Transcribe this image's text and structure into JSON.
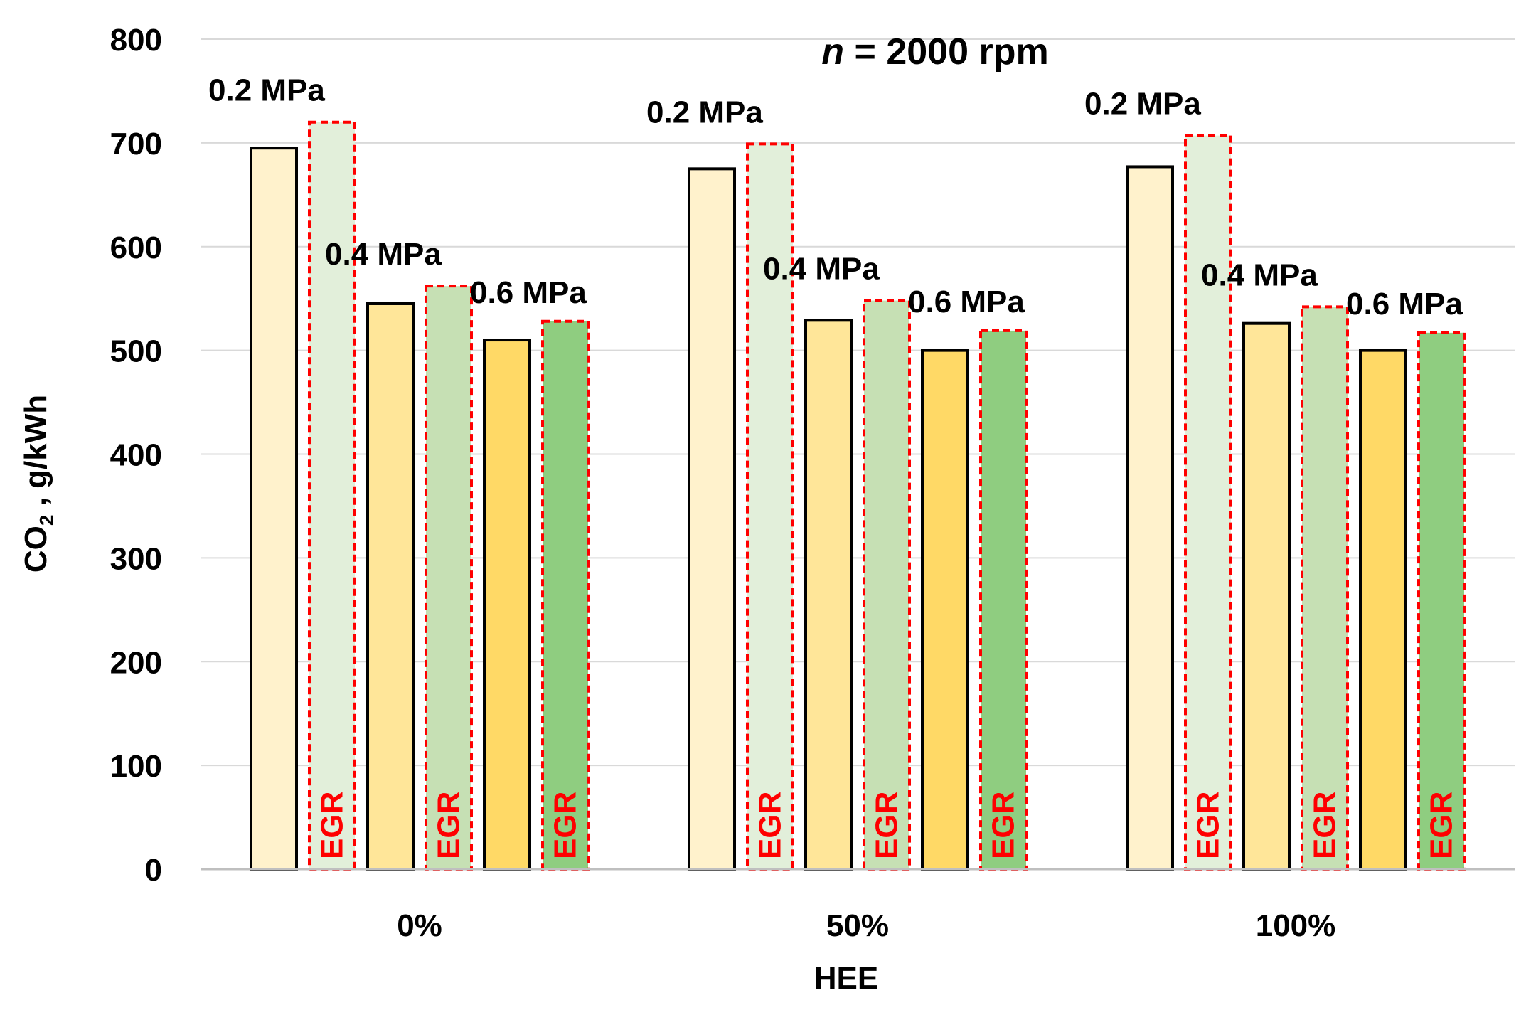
{
  "chart_data": {
    "type": "bar",
    "title_prefix": "n",
    "title_suffix": " = 2000 rpm",
    "xlabel": "HEE",
    "ylabel_prefix": "CO",
    "ylabel_sub": "2",
    "ylabel_suffix": " , g/kWh",
    "ylim": [
      0,
      800
    ],
    "yticks": [
      "0",
      "100",
      "200",
      "300",
      "400",
      "500",
      "600",
      "700",
      "800"
    ],
    "grid": true,
    "categories": [
      "0%",
      "50%",
      "100%"
    ],
    "series": [
      {
        "name": "0.2 MPa",
        "egr": false,
        "color": "#fff2cc",
        "values": [
          695,
          675,
          677
        ]
      },
      {
        "name": "0.2 MPa EGR",
        "egr": true,
        "color": "#e2efda",
        "values": [
          720,
          699,
          707
        ]
      },
      {
        "name": "0.4 MPa",
        "egr": false,
        "color": "#ffe699",
        "values": [
          545,
          529,
          526
        ]
      },
      {
        "name": "0.4 MPa EGR",
        "egr": true,
        "color": "#c6e0b4",
        "values": [
          562,
          548,
          542
        ]
      },
      {
        "name": "0.6 MPa",
        "egr": false,
        "color": "#ffd966",
        "values": [
          510,
          500,
          500
        ]
      },
      {
        "name": "0.6 MPa EGR",
        "egr": true,
        "color": "#8fcd80",
        "values": [
          528,
          519,
          517
        ]
      }
    ],
    "pressure_labels": [
      "0.2 MPa",
      "0.4 MPa",
      "0.6 MPa"
    ],
    "egr_label": "EGR",
    "egr_outline_color": "#ff0000"
  }
}
